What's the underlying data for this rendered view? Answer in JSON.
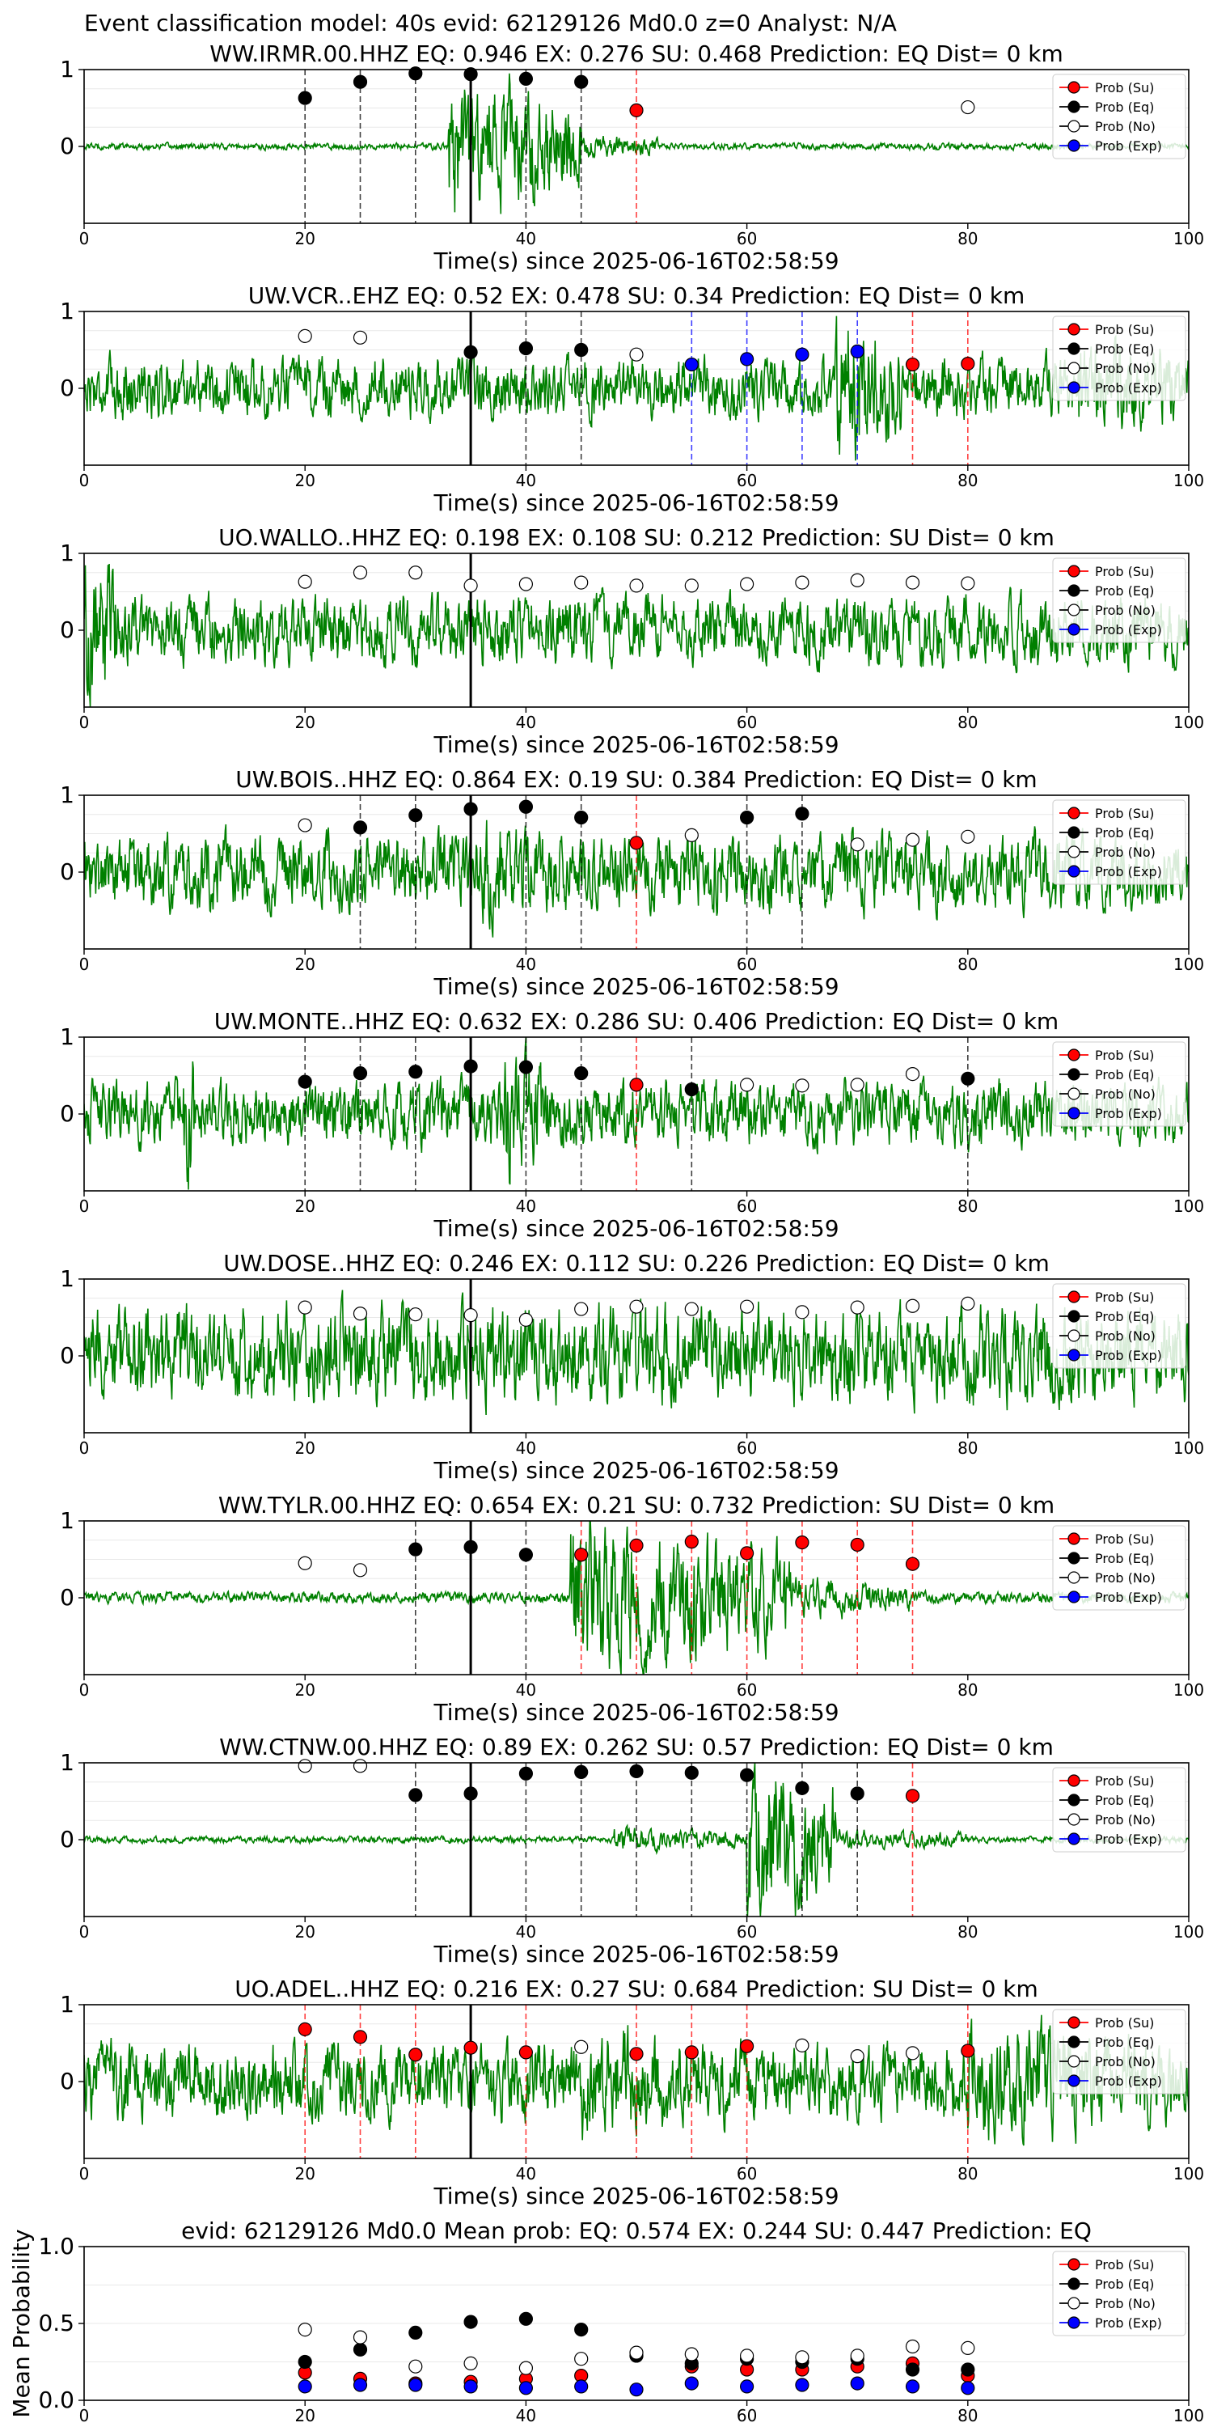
{
  "figure": {
    "suptitle": "Event classification model: 40s evid: 62129126 Md0.0 z=0 Analyst: N/A",
    "pick_time_s": 35
  },
  "legend_labels": [
    "Prob (Su)",
    "Prob (Eq)",
    "Prob (No)",
    "Prob (Exp)"
  ],
  "colors": {
    "su": "#ff0000",
    "eq": "#000000",
    "no": "#ffffff",
    "exp": "#0000ff",
    "trace": "#008000"
  },
  "chart_data": [
    {
      "type": "line",
      "title": "WW.IRMR.00.HHZ   EQ: 0.946  EX: 0.276  SU: 0.468   Prediction: EQ    Dist= 0 km",
      "xlabel": "Time(s) since 2025-06-16T02:58:59",
      "xlim": [
        0,
        100
      ],
      "ylim": [
        -1,
        1
      ],
      "xticks": [
        0,
        20,
        40,
        60,
        80,
        100
      ],
      "yticks": [
        0,
        1
      ],
      "waveform": {
        "noise": 0.03,
        "bursts": [
          [
            33,
            45,
            0.7
          ],
          [
            45,
            52,
            0.12
          ]
        ]
      },
      "windows": [
        {
          "t": 20,
          "class": "eq",
          "p": 0.63
        },
        {
          "t": 25,
          "class": "eq",
          "p": 0.84
        },
        {
          "t": 30,
          "class": "eq",
          "p": 0.95
        },
        {
          "t": 35,
          "class": "eq",
          "p": 0.94
        },
        {
          "t": 40,
          "class": "eq",
          "p": 0.88
        },
        {
          "t": 45,
          "class": "eq",
          "p": 0.84
        },
        {
          "t": 50,
          "class": "su",
          "p": 0.47
        },
        {
          "t": 80,
          "class": "no",
          "p": 0.51
        }
      ]
    },
    {
      "type": "line",
      "title": "UW.VCR..EHZ   EQ: 0.52  EX: 0.478  SU: 0.34   Prediction: EQ    Dist= 0 km",
      "xlabel": "Time(s) since 2025-06-16T02:58:59",
      "xlim": [
        0,
        100
      ],
      "ylim": [
        -1,
        1
      ],
      "xticks": [
        0,
        20,
        40,
        60,
        80,
        100
      ],
      "yticks": [
        0,
        1
      ],
      "waveform": {
        "noise": 0.28,
        "bursts": [
          [
            68,
            74,
            0.8
          ],
          [
            90,
            100,
            0.5
          ]
        ]
      },
      "windows": [
        {
          "t": 20,
          "class": "no",
          "p": 0.68
        },
        {
          "t": 25,
          "class": "no",
          "p": 0.66
        },
        {
          "t": 35,
          "class": "eq",
          "p": 0.47
        },
        {
          "t": 40,
          "class": "eq",
          "p": 0.52
        },
        {
          "t": 45,
          "class": "eq",
          "p": 0.5
        },
        {
          "t": 50,
          "class": "no",
          "p": 0.44
        },
        {
          "t": 55,
          "class": "exp",
          "p": 0.31
        },
        {
          "t": 60,
          "class": "exp",
          "p": 0.38
        },
        {
          "t": 65,
          "class": "exp",
          "p": 0.44
        },
        {
          "t": 70,
          "class": "exp",
          "p": 0.48
        },
        {
          "t": 75,
          "class": "su",
          "p": 0.31
        },
        {
          "t": 80,
          "class": "su",
          "p": 0.32
        }
      ]
    },
    {
      "type": "line",
      "title": "UO.WALLO..HHZ   EQ: 0.198  EX: 0.108  SU: 0.212   Prediction: SU    Dist= 0 km",
      "xlabel": "Time(s) since 2025-06-16T02:58:59",
      "xlim": [
        0,
        100
      ],
      "ylim": [
        -1,
        1
      ],
      "xticks": [
        0,
        20,
        40,
        60,
        80,
        100
      ],
      "yticks": [
        0,
        1
      ],
      "waveform": {
        "noise": 0.32,
        "bursts": [
          [
            0,
            3,
            0.9
          ]
        ]
      },
      "windows": [
        {
          "t": 20,
          "class": "no",
          "p": 0.63
        },
        {
          "t": 25,
          "class": "no",
          "p": 0.75
        },
        {
          "t": 30,
          "class": "no",
          "p": 0.75
        },
        {
          "t": 35,
          "class": "no",
          "p": 0.58
        },
        {
          "t": 40,
          "class": "no",
          "p": 0.6
        },
        {
          "t": 45,
          "class": "no",
          "p": 0.62
        },
        {
          "t": 50,
          "class": "no",
          "p": 0.58
        },
        {
          "t": 55,
          "class": "no",
          "p": 0.58
        },
        {
          "t": 60,
          "class": "no",
          "p": 0.6
        },
        {
          "t": 65,
          "class": "no",
          "p": 0.62
        },
        {
          "t": 70,
          "class": "no",
          "p": 0.65
        },
        {
          "t": 75,
          "class": "no",
          "p": 0.62
        },
        {
          "t": 80,
          "class": "no",
          "p": 0.61
        }
      ]
    },
    {
      "type": "line",
      "title": "UW.BOIS..HHZ   EQ: 0.864  EX: 0.19  SU: 0.384   Prediction: EQ    Dist= 0 km",
      "xlabel": "Time(s) since 2025-06-16T02:58:59",
      "xlim": [
        0,
        100
      ],
      "ylim": [
        -1,
        1
      ],
      "xticks": [
        0,
        20,
        40,
        60,
        80,
        100
      ],
      "yticks": [
        0,
        1
      ],
      "waveform": {
        "noise": 0.35,
        "bursts": [
          [
            36,
            44,
            0.5
          ],
          [
            82,
            100,
            0.3
          ]
        ]
      },
      "windows": [
        {
          "t": 20,
          "class": "no",
          "p": 0.61
        },
        {
          "t": 25,
          "class": "eq",
          "p": 0.58
        },
        {
          "t": 30,
          "class": "eq",
          "p": 0.74
        },
        {
          "t": 35,
          "class": "eq",
          "p": 0.82
        },
        {
          "t": 40,
          "class": "eq",
          "p": 0.85
        },
        {
          "t": 45,
          "class": "eq",
          "p": 0.71
        },
        {
          "t": 50,
          "class": "su",
          "p": 0.38
        },
        {
          "t": 55,
          "class": "no",
          "p": 0.48
        },
        {
          "t": 60,
          "class": "eq",
          "p": 0.71
        },
        {
          "t": 65,
          "class": "eq",
          "p": 0.76
        },
        {
          "t": 70,
          "class": "no",
          "p": 0.36
        },
        {
          "t": 75,
          "class": "no",
          "p": 0.42
        },
        {
          "t": 80,
          "class": "no",
          "p": 0.46
        }
      ]
    },
    {
      "type": "line",
      "title": "UW.MONTE..HHZ   EQ: 0.632  EX: 0.286  SU: 0.406   Prediction: EQ    Dist= 0 km",
      "xlabel": "Time(s) since 2025-06-16T02:58:59",
      "xlim": [
        0,
        100
      ],
      "ylim": [
        -1,
        1
      ],
      "xticks": [
        0,
        20,
        40,
        60,
        80,
        100
      ],
      "yticks": [
        0,
        1
      ],
      "waveform": {
        "noise": 0.3,
        "bursts": [
          [
            38,
            42,
            0.7
          ],
          [
            9,
            10,
            0.9
          ]
        ]
      },
      "windows": [
        {
          "t": 20,
          "class": "eq",
          "p": 0.42
        },
        {
          "t": 25,
          "class": "eq",
          "p": 0.53
        },
        {
          "t": 30,
          "class": "eq",
          "p": 0.55
        },
        {
          "t": 35,
          "class": "eq",
          "p": 0.62
        },
        {
          "t": 40,
          "class": "eq",
          "p": 0.61
        },
        {
          "t": 45,
          "class": "eq",
          "p": 0.53
        },
        {
          "t": 50,
          "class": "su",
          "p": 0.38
        },
        {
          "t": 55,
          "class": "eq",
          "p": 0.32
        },
        {
          "t": 60,
          "class": "no",
          "p": 0.38
        },
        {
          "t": 65,
          "class": "no",
          "p": 0.37
        },
        {
          "t": 70,
          "class": "no",
          "p": 0.38
        },
        {
          "t": 75,
          "class": "no",
          "p": 0.52
        },
        {
          "t": 80,
          "class": "eq",
          "p": 0.46
        }
      ]
    },
    {
      "type": "line",
      "title": "UW.DOSE..HHZ   EQ: 0.246  EX: 0.112  SU: 0.226   Prediction: EQ    Dist= 0 km",
      "xlabel": "Time(s) since 2025-06-16T02:58:59",
      "xlim": [
        0,
        100
      ],
      "ylim": [
        -1,
        1
      ],
      "xticks": [
        0,
        20,
        40,
        60,
        80,
        100
      ],
      "yticks": [
        0,
        1
      ],
      "waveform": {
        "noise": 0.45,
        "bursts": []
      },
      "windows": [
        {
          "t": 20,
          "class": "no",
          "p": 0.63
        },
        {
          "t": 25,
          "class": "no",
          "p": 0.55
        },
        {
          "t": 30,
          "class": "no",
          "p": 0.54
        },
        {
          "t": 35,
          "class": "no",
          "p": 0.53
        },
        {
          "t": 40,
          "class": "no",
          "p": 0.47
        },
        {
          "t": 45,
          "class": "no",
          "p": 0.61
        },
        {
          "t": 50,
          "class": "no",
          "p": 0.64
        },
        {
          "t": 55,
          "class": "no",
          "p": 0.61
        },
        {
          "t": 60,
          "class": "no",
          "p": 0.64
        },
        {
          "t": 65,
          "class": "no",
          "p": 0.57
        },
        {
          "t": 70,
          "class": "no",
          "p": 0.63
        },
        {
          "t": 75,
          "class": "no",
          "p": 0.65
        },
        {
          "t": 80,
          "class": "no",
          "p": 0.68
        }
      ]
    },
    {
      "type": "line",
      "title": "WW.TYLR.00.HHZ   EQ: 0.654  EX: 0.21  SU: 0.732   Prediction: SU    Dist= 0 km",
      "xlabel": "Time(s) since 2025-06-16T02:58:59",
      "xlim": [
        0,
        100
      ],
      "ylim": [
        -1,
        1
      ],
      "xticks": [
        0,
        20,
        40,
        60,
        80,
        100
      ],
      "yticks": [
        0,
        1
      ],
      "waveform": {
        "noise": 0.05,
        "bursts": [
          [
            44,
            64,
            0.75
          ],
          [
            64,
            75,
            0.2
          ]
        ]
      },
      "windows": [
        {
          "t": 20,
          "class": "no",
          "p": 0.45
        },
        {
          "t": 25,
          "class": "no",
          "p": 0.36
        },
        {
          "t": 30,
          "class": "eq",
          "p": 0.63
        },
        {
          "t": 35,
          "class": "eq",
          "p": 0.66
        },
        {
          "t": 40,
          "class": "eq",
          "p": 0.56
        },
        {
          "t": 45,
          "class": "su",
          "p": 0.56
        },
        {
          "t": 50,
          "class": "su",
          "p": 0.68
        },
        {
          "t": 55,
          "class": "su",
          "p": 0.73
        },
        {
          "t": 60,
          "class": "su",
          "p": 0.58
        },
        {
          "t": 65,
          "class": "su",
          "p": 0.72
        },
        {
          "t": 70,
          "class": "su",
          "p": 0.69
        },
        {
          "t": 75,
          "class": "su",
          "p": 0.44
        }
      ]
    },
    {
      "type": "line",
      "title": "WW.CTNW.00.HHZ   EQ: 0.89  EX: 0.262  SU: 0.57   Prediction: EQ    Dist= 0 km",
      "xlabel": "Time(s) since 2025-06-16T02:58:59",
      "xlim": [
        0,
        100
      ],
      "ylim": [
        -1,
        1
      ],
      "xticks": [
        0,
        20,
        40,
        60,
        80,
        100
      ],
      "yticks": [
        0,
        1
      ],
      "waveform": {
        "noise": 0.03,
        "bursts": [
          [
            48,
            60,
            0.12
          ],
          [
            60,
            68,
            0.85
          ],
          [
            68,
            80,
            0.1
          ]
        ]
      },
      "windows": [
        {
          "t": 20,
          "class": "no",
          "p": 0.96
        },
        {
          "t": 25,
          "class": "no",
          "p": 0.96
        },
        {
          "t": 30,
          "class": "eq",
          "p": 0.58
        },
        {
          "t": 35,
          "class": "eq",
          "p": 0.6
        },
        {
          "t": 40,
          "class": "eq",
          "p": 0.86
        },
        {
          "t": 45,
          "class": "eq",
          "p": 0.88
        },
        {
          "t": 50,
          "class": "eq",
          "p": 0.89
        },
        {
          "t": 55,
          "class": "eq",
          "p": 0.87
        },
        {
          "t": 60,
          "class": "eq",
          "p": 0.84
        },
        {
          "t": 65,
          "class": "eq",
          "p": 0.67
        },
        {
          "t": 70,
          "class": "eq",
          "p": 0.6
        },
        {
          "t": 75,
          "class": "su",
          "p": 0.57
        }
      ]
    },
    {
      "type": "line",
      "title": "UO.ADEL..HHZ   EQ: 0.216  EX: 0.27  SU: 0.684   Prediction: SU    Dist= 0 km",
      "xlabel": "Time(s) since 2025-06-16T02:58:59",
      "xlim": [
        0,
        100
      ],
      "ylim": [
        -1,
        1
      ],
      "xticks": [
        0,
        20,
        40,
        60,
        80,
        100
      ],
      "yticks": [
        0,
        1
      ],
      "waveform": {
        "noise": 0.35,
        "bursts": [
          [
            45,
            62,
            0.55
          ],
          [
            80,
            100,
            0.6
          ]
        ]
      },
      "windows": [
        {
          "t": 20,
          "class": "su",
          "p": 0.68
        },
        {
          "t": 25,
          "class": "su",
          "p": 0.58
        },
        {
          "t": 30,
          "class": "su",
          "p": 0.35
        },
        {
          "t": 35,
          "class": "su",
          "p": 0.44
        },
        {
          "t": 40,
          "class": "su",
          "p": 0.38
        },
        {
          "t": 45,
          "class": "no",
          "p": 0.45
        },
        {
          "t": 50,
          "class": "su",
          "p": 0.36
        },
        {
          "t": 55,
          "class": "su",
          "p": 0.38
        },
        {
          "t": 60,
          "class": "su",
          "p": 0.46
        },
        {
          "t": 65,
          "class": "no",
          "p": 0.47
        },
        {
          "t": 70,
          "class": "no",
          "p": 0.33
        },
        {
          "t": 75,
          "class": "no",
          "p": 0.37
        },
        {
          "t": 80,
          "class": "su",
          "p": 0.4
        }
      ]
    },
    {
      "type": "scatter",
      "title": "evid: 62129126  Md0.0   Mean prob:    EQ: 0.574  EX: 0.244  SU: 0.447   Prediction: EQ",
      "ylabel": "Mean Probability",
      "xlim": [
        0,
        100
      ],
      "ylim": [
        0,
        1
      ],
      "xticks": [
        0,
        20,
        40,
        60,
        80,
        100
      ],
      "yticks": [
        0.0,
        0.5,
        1.0
      ],
      "x": [
        20,
        25,
        30,
        35,
        40,
        45,
        50,
        55,
        60,
        65,
        70,
        75,
        80
      ],
      "series": [
        {
          "name": "Prob (Su)",
          "key": "su",
          "values": [
            0.18,
            0.14,
            0.11,
            0.12,
            0.14,
            0.16,
            0.29,
            0.22,
            0.2,
            0.2,
            0.22,
            0.24,
            0.16
          ]
        },
        {
          "name": "Prob (Eq)",
          "key": "eq",
          "values": [
            0.25,
            0.33,
            0.44,
            0.51,
            0.53,
            0.46,
            0.29,
            0.24,
            0.27,
            0.25,
            0.27,
            0.2,
            0.2
          ]
        },
        {
          "name": "Prob (No)",
          "key": "no",
          "values": [
            0.46,
            0.41,
            0.22,
            0.24,
            0.21,
            0.27,
            0.31,
            0.3,
            0.29,
            0.28,
            0.29,
            0.35,
            0.34
          ]
        },
        {
          "name": "Prob (Exp)",
          "key": "exp",
          "values": [
            0.09,
            0.1,
            0.1,
            0.09,
            0.08,
            0.09,
            0.07,
            0.11,
            0.09,
            0.1,
            0.11,
            0.09,
            0.08
          ]
        }
      ]
    }
  ]
}
